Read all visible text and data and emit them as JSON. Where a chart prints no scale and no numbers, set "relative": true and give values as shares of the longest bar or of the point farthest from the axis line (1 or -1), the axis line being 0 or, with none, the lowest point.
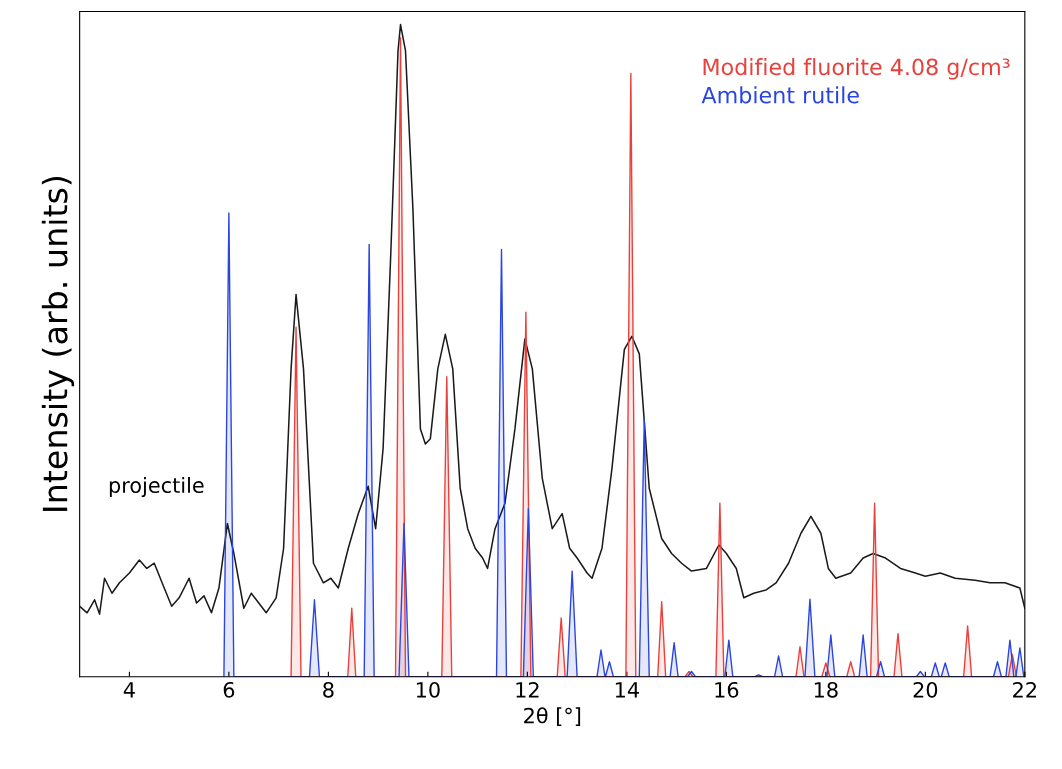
{
  "chart_data": {
    "type": "line",
    "relative": true,
    "xlabel": "2θ [°]",
    "ylabel": "Intensity (arb. units)",
    "xlim": [
      3,
      22
    ],
    "xticks": [
      4,
      6,
      8,
      10,
      12,
      14,
      16,
      18,
      20,
      22
    ],
    "grid": false,
    "legend": "top right",
    "series": [
      {
        "name": "projectile",
        "color": "#1a1a1a",
        "x": [
          3.0,
          3.15,
          3.3,
          3.4,
          3.5,
          3.65,
          3.8,
          4.0,
          4.2,
          4.35,
          4.5,
          4.7,
          4.85,
          5.0,
          5.2,
          5.35,
          5.5,
          5.65,
          5.8,
          5.97,
          6.1,
          6.3,
          6.45,
          6.6,
          6.75,
          6.95,
          7.1,
          7.25,
          7.35,
          7.5,
          7.7,
          7.9,
          8.05,
          8.2,
          8.4,
          8.6,
          8.8,
          8.95,
          9.1,
          9.25,
          9.4,
          9.45,
          9.55,
          9.7,
          9.85,
          9.95,
          10.05,
          10.2,
          10.35,
          10.5,
          10.65,
          10.8,
          10.95,
          11.1,
          11.2,
          11.35,
          11.55,
          11.75,
          11.95,
          12.1,
          12.3,
          12.5,
          12.7,
          12.85,
          13.0,
          13.2,
          13.3,
          13.5,
          13.7,
          13.95,
          14.1,
          14.25,
          14.45,
          14.7,
          14.9,
          15.1,
          15.3,
          15.6,
          15.85,
          16.0,
          16.2,
          16.35,
          16.55,
          16.8,
          17.0,
          17.25,
          17.5,
          17.7,
          17.9,
          18.05,
          18.2,
          18.5,
          18.75,
          18.95,
          19.2,
          19.5,
          19.8,
          20.0,
          20.3,
          20.6,
          21.0,
          21.3,
          21.6,
          21.9,
          22.0
        ],
        "values": [
          0.108,
          0.098,
          0.118,
          0.096,
          0.151,
          0.128,
          0.144,
          0.159,
          0.179,
          0.166,
          0.174,
          0.136,
          0.108,
          0.121,
          0.151,
          0.113,
          0.124,
          0.098,
          0.136,
          0.235,
          0.189,
          0.105,
          0.128,
          0.113,
          0.098,
          0.121,
          0.197,
          0.472,
          0.586,
          0.472,
          0.174,
          0.144,
          0.151,
          0.136,
          0.197,
          0.25,
          0.292,
          0.227,
          0.35,
          0.64,
          0.96,
          1.0,
          0.96,
          0.716,
          0.38,
          0.357,
          0.365,
          0.472,
          0.525,
          0.472,
          0.289,
          0.227,
          0.197,
          0.182,
          0.166,
          0.227,
          0.266,
          0.38,
          0.518,
          0.472,
          0.304,
          0.227,
          0.25,
          0.197,
          0.182,
          0.159,
          0.151,
          0.197,
          0.319,
          0.502,
          0.522,
          0.495,
          0.289,
          0.212,
          0.189,
          0.174,
          0.162,
          0.166,
          0.202,
          0.189,
          0.166,
          0.121,
          0.128,
          0.133,
          0.144,
          0.174,
          0.22,
          0.246,
          0.22,
          0.166,
          0.151,
          0.159,
          0.182,
          0.189,
          0.182,
          0.166,
          0.159,
          0.154,
          0.159,
          0.151,
          0.148,
          0.144,
          0.144,
          0.136,
          0.105
        ]
      },
      {
        "name": "Modified fluorite 4.08 g/cm³",
        "type": "area",
        "color": "#e8413c",
        "x": [
          7.25,
          7.35,
          7.45,
          8.39,
          8.47,
          8.55,
          9.35,
          9.45,
          9.55,
          10.28,
          10.38,
          10.48,
          11.87,
          11.97,
          12.07,
          12.6,
          12.68,
          12.76,
          13.98,
          14.08,
          14.18,
          14.62,
          14.7,
          14.78,
          15.17,
          15.25,
          15.33,
          15.79,
          15.87,
          15.95,
          17.4,
          17.48,
          17.56,
          17.92,
          18.0,
          18.08,
          18.42,
          18.5,
          18.58,
          18.9,
          18.98,
          19.06,
          19.37,
          19.45,
          19.53,
          20.77,
          20.85,
          20.93,
          21.67,
          21.75,
          21.83
        ],
        "values": [
          0,
          0.536,
          0,
          0,
          0.105,
          0,
          0,
          0.98,
          0,
          0,
          0.46,
          0,
          0,
          0.559,
          0,
          0,
          0.09,
          0,
          0,
          0.925,
          0,
          0,
          0.115,
          0,
          0,
          0.008,
          0,
          0,
          0.266,
          0,
          0,
          0.046,
          0,
          0,
          0.021,
          0,
          0,
          0.023,
          0,
          0,
          0.266,
          0,
          0,
          0.066,
          0,
          0,
          0.078,
          0,
          0,
          0.034,
          0
        ]
      },
      {
        "name": "Ambient rutile",
        "type": "area",
        "color": "#2a45e0",
        "x": [
          5.9,
          6.0,
          6.1,
          7.62,
          7.72,
          7.82,
          8.72,
          8.82,
          8.92,
          9.42,
          9.52,
          9.62,
          11.38,
          11.48,
          11.58,
          11.92,
          12.02,
          12.12,
          12.8,
          12.9,
          13.0,
          13.4,
          13.48,
          13.56,
          13.57,
          13.65,
          13.73,
          14.25,
          14.35,
          14.45,
          14.87,
          14.95,
          15.03,
          15.22,
          15.3,
          15.38,
          15.97,
          16.05,
          16.13,
          16.57,
          16.65,
          16.73,
          16.97,
          17.05,
          17.13,
          17.58,
          17.68,
          17.78,
          18.02,
          18.1,
          18.18,
          18.67,
          18.75,
          18.83,
          19.02,
          19.1,
          19.18,
          19.82,
          19.9,
          19.98,
          20.12,
          20.2,
          20.28,
          20.32,
          20.4,
          20.48,
          21.37,
          21.45,
          21.53,
          21.62,
          21.7,
          21.78,
          21.82,
          21.9,
          21.98
        ],
        "values": [
          0,
          0.711,
          0,
          0,
          0.118,
          0,
          0,
          0.663,
          0,
          0,
          0.235,
          0,
          0,
          0.655,
          0,
          0,
          0.258,
          0,
          0,
          0.162,
          0,
          0,
          0.041,
          0,
          0,
          0.023,
          0,
          0,
          0.395,
          0,
          0,
          0.052,
          0,
          0,
          0.008,
          0,
          0,
          0.056,
          0,
          0,
          0.003,
          0,
          0,
          0.032,
          0,
          0,
          0.119,
          0,
          0,
          0.064,
          0,
          0,
          0.064,
          0,
          0,
          0.023,
          0,
          0,
          0.008,
          0,
          0,
          0.021,
          0,
          0,
          0.021,
          0,
          0,
          0.023,
          0,
          0,
          0.056,
          0,
          0,
          0.044,
          0
        ]
      }
    ]
  }
}
